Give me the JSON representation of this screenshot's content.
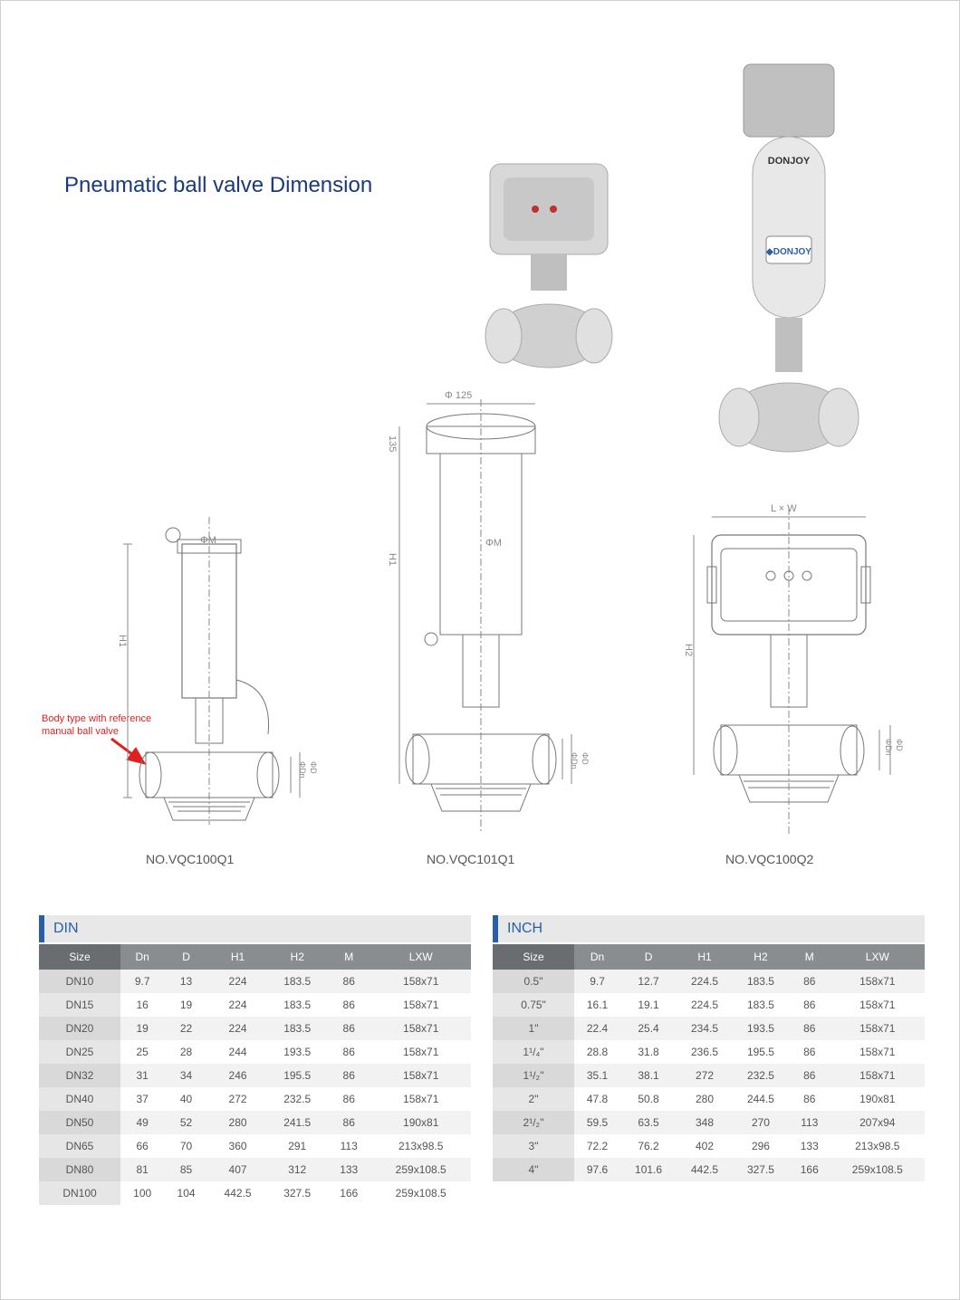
{
  "title": "Pneumatic ball valve Dimension",
  "note_line1": "Body type with reference",
  "note_line2": "manual ball valve",
  "diagrams": {
    "d1_label": "NO.VQC100Q1",
    "d2_label": "NO.VQC101Q1",
    "d3_label": "NO.VQC100Q2",
    "phi125": "Φ 125",
    "h135": "135",
    "phiM": "ΦM",
    "H1": "H1",
    "H2": "H2",
    "LxW": "L × W",
    "phiDn": "ΦDn",
    "phiD": "ΦD"
  },
  "tables": {
    "din": {
      "title": "DIN",
      "columns": [
        "Size",
        "Dn",
        "D",
        "H1",
        "H2",
        "M",
        "LXW"
      ],
      "rows": [
        [
          "DN10",
          "9.7",
          "13",
          "224",
          "183.5",
          "86",
          "158x71"
        ],
        [
          "DN15",
          "16",
          "19",
          "224",
          "183.5",
          "86",
          "158x71"
        ],
        [
          "DN20",
          "19",
          "22",
          "224",
          "183.5",
          "86",
          "158x71"
        ],
        [
          "DN25",
          "25",
          "28",
          "244",
          "193.5",
          "86",
          "158x71"
        ],
        [
          "DN32",
          "31",
          "34",
          "246",
          "195.5",
          "86",
          "158x71"
        ],
        [
          "DN40",
          "37",
          "40",
          "272",
          "232.5",
          "86",
          "158x71"
        ],
        [
          "DN50",
          "49",
          "52",
          "280",
          "241.5",
          "86",
          "190x81"
        ],
        [
          "DN65",
          "66",
          "70",
          "360",
          "291",
          "113",
          "213x98.5"
        ],
        [
          "DN80",
          "81",
          "85",
          "407",
          "312",
          "133",
          "259x108.5"
        ],
        [
          "DN100",
          "100",
          "104",
          "442.5",
          "327.5",
          "166",
          "259x108.5"
        ]
      ]
    },
    "inch": {
      "title": "INCH",
      "columns": [
        "Size",
        "Dn",
        "D",
        "H1",
        "H2",
        "M",
        "LXW"
      ],
      "rows": [
        [
          "0.5\"",
          "9.7",
          "12.7",
          "224.5",
          "183.5",
          "86",
          "158x71"
        ],
        [
          "0.75\"",
          "16.1",
          "19.1",
          "224.5",
          "183.5",
          "86",
          "158x71"
        ],
        [
          "1\"",
          "22.4",
          "25.4",
          "234.5",
          "193.5",
          "86",
          "158x71"
        ],
        [
          "1¹/₄\"",
          "28.8",
          "31.8",
          "236.5",
          "195.5",
          "86",
          "158x71"
        ],
        [
          "1¹/₂\"",
          "35.1",
          "38.1",
          "272",
          "232.5",
          "86",
          "158x71"
        ],
        [
          "2\"",
          "47.8",
          "50.8",
          "280",
          "244.5",
          "86",
          "190x81"
        ],
        [
          "2¹/₂\"",
          "59.5",
          "63.5",
          "348",
          "270",
          "113",
          "207x94"
        ],
        [
          "3\"",
          "72.2",
          "76.2",
          "402",
          "296",
          "133",
          "213x98.5"
        ],
        [
          "4\"",
          "97.6",
          "101.6",
          "442.5",
          "327.5",
          "166",
          "259x108.5"
        ]
      ]
    }
  },
  "colors": {
    "title_color": "#1a3a7a",
    "note_color": "#e02020",
    "table_header_bg": "#8a8d90",
    "table_size_header_bg": "#6a6d70",
    "table_title_border": "#2a5fa8",
    "row_odd_bg": "#f2f2f2",
    "size_cell_bg": "#d9d9d9"
  }
}
